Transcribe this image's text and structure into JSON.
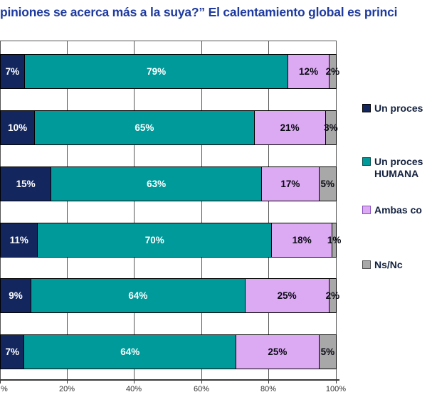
{
  "title": {
    "text": "piniones se acerca más a la suya?” El calentamiento global es princi",
    "color": "#1e3a9f"
  },
  "chart_data": {
    "type": "bar",
    "orientation": "horizontal-stacked-100",
    "title": "piniones se acerca más a la suya?” El calentamiento global es princi",
    "xlabel": "",
    "ylabel": "",
    "xlim": [
      0,
      100
    ],
    "grid": true,
    "legend_position": "right",
    "x_ticks": [
      "%",
      "20%",
      "40%",
      "60%",
      "80%",
      "100%"
    ],
    "rows": 6,
    "series": [
      {
        "name": "Un proces",
        "color": "#13265e",
        "label_color": "#ffffff",
        "values": [
          7,
          10,
          15,
          11,
          9,
          7
        ]
      },
      {
        "name": "Un proces HUMANA",
        "color": "#009a9a",
        "label_color": "#ffffff",
        "values": [
          79,
          65,
          63,
          70,
          64,
          64
        ]
      },
      {
        "name": "Ambas co",
        "color": "#dcaaf2",
        "label_color": "#0a0a14",
        "values": [
          12,
          21,
          17,
          18,
          25,
          25
        ]
      },
      {
        "name": "Ns/Nc",
        "color": "#a8a8a8",
        "label_color": "#0a0a14",
        "values": [
          2,
          3,
          5,
          1,
          2,
          5
        ]
      }
    ],
    "value_suffix": "%"
  },
  "legend": {
    "items": [
      {
        "label": "Un proces",
        "swatch": "#13265e",
        "swatch_border": "#000000"
      },
      {
        "label": "Un proces",
        "label_line2": "HUMANA",
        "swatch": "#009a9a",
        "swatch_border": "#004d4d"
      },
      {
        "label": "Ambas co",
        "swatch": "#dcaaf2",
        "swatch_border": "#8a4fc0"
      },
      {
        "label": "Ns/Nc",
        "swatch": "#a8a8a8",
        "swatch_border": "#4d4d4d"
      }
    ]
  }
}
